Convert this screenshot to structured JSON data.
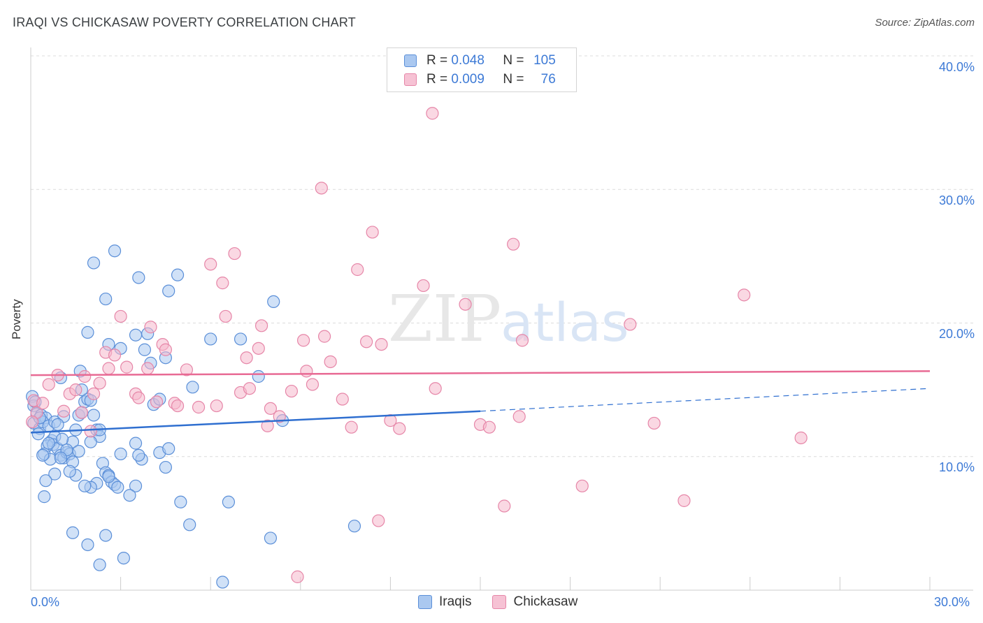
{
  "title": "IRAQI VS CHICKASAW POVERTY CORRELATION CHART",
  "source": "Source: ZipAtlas.com",
  "watermark": {
    "zip": "ZIP",
    "atlas": "atlas"
  },
  "legend_top": [
    {
      "r_label": "R =",
      "r_value": "0.048",
      "n_label": "N =",
      "n_value": "105"
    },
    {
      "r_label": "R =",
      "r_value": "0.009",
      "n_label": "N =",
      "n_value": "76"
    }
  ],
  "legend_bottom": [
    {
      "label": "Iraqis"
    },
    {
      "label": "Chickasaw"
    }
  ],
  "colors": {
    "blue_fill": "#aac8f0",
    "blue_stroke": "#5b8fd8",
    "blue_line": "#2f6fd0",
    "pink_fill": "#f6b8cc",
    "pink_stroke": "#e686a8",
    "pink_line": "#e86a94",
    "axis_text": "#3d7ad6",
    "grid": "#dcdcdc"
  },
  "chart_data": {
    "type": "scatter",
    "title": "IRAQI VS CHICKASAW POVERTY CORRELATION CHART",
    "xlabel": "",
    "ylabel": "Poverty",
    "xlim": [
      0,
      30
    ],
    "ylim": [
      0,
      40
    ],
    "x_tick_labels": [
      "0.0%",
      "30.0%"
    ],
    "y_tick_labels": [
      "10.0%",
      "20.0%",
      "30.0%",
      "40.0%"
    ],
    "y_ticks": [
      10,
      20,
      30,
      40
    ],
    "grid": true,
    "legend_position": "top-center",
    "series": [
      {
        "name": "Iraqis",
        "R": 0.048,
        "N": 105,
        "trend": {
          "x0": 0,
          "y0": 11.8,
          "x1": 15,
          "y1": 13.4,
          "dash_to_x": 30,
          "dash_to_y": 15.1
        },
        "points": [
          [
            0.05,
            14.5
          ],
          [
            0.1,
            13.8
          ],
          [
            0.15,
            14.1
          ],
          [
            0.2,
            13.2
          ],
          [
            0.1,
            12.5
          ],
          [
            0.3,
            12.1
          ],
          [
            0.25,
            11.7
          ],
          [
            0.35,
            13.1
          ],
          [
            0.5,
            12.9
          ],
          [
            0.4,
            12.6
          ],
          [
            0.6,
            12.3
          ],
          [
            0.7,
            11.2
          ],
          [
            0.8,
            11.5
          ],
          [
            0.55,
            10.8
          ],
          [
            0.45,
            10.2
          ],
          [
            0.65,
            9.8
          ],
          [
            0.75,
            10.9
          ],
          [
            0.9,
            10.6
          ],
          [
            1.0,
            10.1
          ],
          [
            1.1,
            9.9
          ],
          [
            1.2,
            10.3
          ],
          [
            1.3,
            10.2
          ],
          [
            1.4,
            11.1
          ],
          [
            1.5,
            12.0
          ],
          [
            1.6,
            13.1
          ],
          [
            1.7,
            13.3
          ],
          [
            1.8,
            14.1
          ],
          [
            1.9,
            14.3
          ],
          [
            2.0,
            14.2
          ],
          [
            1.0,
            15.9
          ],
          [
            1.7,
            15.0
          ],
          [
            1.65,
            16.4
          ],
          [
            2.1,
            13.1
          ],
          [
            2.2,
            12.0
          ],
          [
            2.3,
            11.5
          ],
          [
            2.4,
            9.5
          ],
          [
            2.5,
            8.8
          ],
          [
            2.6,
            8.6
          ],
          [
            2.7,
            8.1
          ],
          [
            2.8,
            7.9
          ],
          [
            2.9,
            7.7
          ],
          [
            3.0,
            10.2
          ],
          [
            1.4,
            9.6
          ],
          [
            1.5,
            8.6
          ],
          [
            1.3,
            8.9
          ],
          [
            1.2,
            10.5
          ],
          [
            0.8,
            8.7
          ],
          [
            0.5,
            8.2
          ],
          [
            1.0,
            9.9
          ],
          [
            0.45,
            7.0
          ],
          [
            1.4,
            4.3
          ],
          [
            1.9,
            3.4
          ],
          [
            2.5,
            4.1
          ],
          [
            2.3,
            1.9
          ],
          [
            3.1,
            2.4
          ],
          [
            3.5,
            7.8
          ],
          [
            3.3,
            7.1
          ],
          [
            3.7,
            9.8
          ],
          [
            3.6,
            10.1
          ],
          [
            3.5,
            11.0
          ],
          [
            4.1,
            13.9
          ],
          [
            4.3,
            14.3
          ],
          [
            4.0,
            17.0
          ],
          [
            3.8,
            18.0
          ],
          [
            3.5,
            19.1
          ],
          [
            3.9,
            19.2
          ],
          [
            2.6,
            18.4
          ],
          [
            3.0,
            18.1
          ],
          [
            2.5,
            21.8
          ],
          [
            2.1,
            24.5
          ],
          [
            2.8,
            25.4
          ],
          [
            3.6,
            23.4
          ],
          [
            4.6,
            22.4
          ],
          [
            4.9,
            23.6
          ],
          [
            1.9,
            19.3
          ],
          [
            4.5,
            17.4
          ],
          [
            4.3,
            10.3
          ],
          [
            4.6,
            10.6
          ],
          [
            4.5,
            9.2
          ],
          [
            5.0,
            6.6
          ],
          [
            5.3,
            4.9
          ],
          [
            5.4,
            15.2
          ],
          [
            6.0,
            18.8
          ],
          [
            6.6,
            6.6
          ],
          [
            7.0,
            18.8
          ],
          [
            7.6,
            16.0
          ],
          [
            8.0,
            3.9
          ],
          [
            8.1,
            21.6
          ],
          [
            8.4,
            12.7
          ],
          [
            6.4,
            0.6
          ],
          [
            10.8,
            4.8
          ],
          [
            2.0,
            11.1
          ],
          [
            2.3,
            12.0
          ],
          [
            1.1,
            13.0
          ],
          [
            0.8,
            12.6
          ],
          [
            0.3,
            12.9
          ],
          [
            0.4,
            10.1
          ],
          [
            0.6,
            11.0
          ],
          [
            0.9,
            12.4
          ],
          [
            1.05,
            11.3
          ],
          [
            2.2,
            8.0
          ],
          [
            2.6,
            8.5
          ],
          [
            2.0,
            7.7
          ],
          [
            1.8,
            7.8
          ],
          [
            1.6,
            10.4
          ]
        ]
      },
      {
        "name": "Chickasaw",
        "R": 0.009,
        "N": 76,
        "trend": {
          "x0": 0,
          "y0": 16.1,
          "x1": 30,
          "y1": 16.4
        },
        "points": [
          [
            0.1,
            14.2
          ],
          [
            0.2,
            13.3
          ],
          [
            0.05,
            12.6
          ],
          [
            0.6,
            15.4
          ],
          [
            0.9,
            16.1
          ],
          [
            1.3,
            14.7
          ],
          [
            1.5,
            15.0
          ],
          [
            1.7,
            13.3
          ],
          [
            1.8,
            16.0
          ],
          [
            2.0,
            11.9
          ],
          [
            2.1,
            14.7
          ],
          [
            2.3,
            15.5
          ],
          [
            2.6,
            16.6
          ],
          [
            2.5,
            17.8
          ],
          [
            2.8,
            17.6
          ],
          [
            3.0,
            20.5
          ],
          [
            3.2,
            16.7
          ],
          [
            3.5,
            14.7
          ],
          [
            3.6,
            14.4
          ],
          [
            3.9,
            16.6
          ],
          [
            4.0,
            19.7
          ],
          [
            4.2,
            14.1
          ],
          [
            4.4,
            18.4
          ],
          [
            4.5,
            18.0
          ],
          [
            4.8,
            14.0
          ],
          [
            4.9,
            13.8
          ],
          [
            5.2,
            16.5
          ],
          [
            5.6,
            13.7
          ],
          [
            6.0,
            24.4
          ],
          [
            6.2,
            13.8
          ],
          [
            6.4,
            23.0
          ],
          [
            6.5,
            20.5
          ],
          [
            6.8,
            25.2
          ],
          [
            7.0,
            14.8
          ],
          [
            7.2,
            17.4
          ],
          [
            7.3,
            15.1
          ],
          [
            7.6,
            18.1
          ],
          [
            7.7,
            19.8
          ],
          [
            7.9,
            12.3
          ],
          [
            8.0,
            13.6
          ],
          [
            8.3,
            13.0
          ],
          [
            8.7,
            14.9
          ],
          [
            8.9,
            1.0
          ],
          [
            9.1,
            18.7
          ],
          [
            9.2,
            16.4
          ],
          [
            9.4,
            15.4
          ],
          [
            9.8,
            19.0
          ],
          [
            9.7,
            30.1
          ],
          [
            10.0,
            17.1
          ],
          [
            10.4,
            14.3
          ],
          [
            10.7,
            12.2
          ],
          [
            10.9,
            24.0
          ],
          [
            11.2,
            18.6
          ],
          [
            11.4,
            26.8
          ],
          [
            11.6,
            5.2
          ],
          [
            11.7,
            18.4
          ],
          [
            12.0,
            12.7
          ],
          [
            12.3,
            12.1
          ],
          [
            13.1,
            22.8
          ],
          [
            13.4,
            35.7
          ],
          [
            13.5,
            15.1
          ],
          [
            14.5,
            21.4
          ],
          [
            15.0,
            12.4
          ],
          [
            15.3,
            12.2
          ],
          [
            15.8,
            6.3
          ],
          [
            16.1,
            25.9
          ],
          [
            16.3,
            13.0
          ],
          [
            16.4,
            18.7
          ],
          [
            18.4,
            7.8
          ],
          [
            20.0,
            19.9
          ],
          [
            20.8,
            12.5
          ],
          [
            21.8,
            6.7
          ],
          [
            23.8,
            22.1
          ],
          [
            25.7,
            11.4
          ],
          [
            1.1,
            13.4
          ],
          [
            0.4,
            14.0
          ]
        ]
      }
    ]
  }
}
